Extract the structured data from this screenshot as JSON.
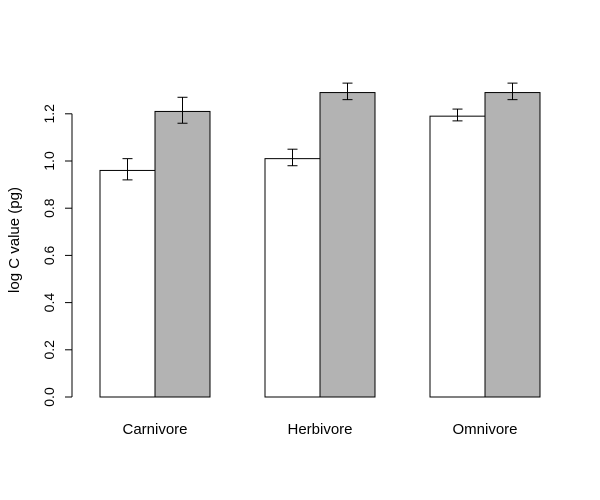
{
  "chart_data": {
    "type": "bar",
    "title": "",
    "xlabel": "",
    "ylabel": "log C value (pg)",
    "ylim": [
      0,
      1.2
    ],
    "yticks": [
      0.0,
      0.2,
      0.4,
      0.6,
      0.8,
      1.0,
      1.2
    ],
    "ytick_labels": [
      "0.0",
      "0.2",
      "0.4",
      "0.6",
      "0.8",
      "1.0",
      "1.2"
    ],
    "categories": [
      "Carnivore",
      "Herbivore",
      "Omnivore"
    ],
    "grid": false,
    "legend": "none",
    "series": [
      {
        "color": "#ffffff",
        "values": [
          0.96,
          1.01,
          1.19
        ],
        "error_low": [
          0.92,
          0.98,
          1.17
        ],
        "error_high": [
          1.01,
          1.05,
          1.22
        ]
      },
      {
        "color": "#b3b3b3",
        "values": [
          1.21,
          1.29,
          1.29
        ],
        "error_low": [
          1.16,
          1.26,
          1.26
        ],
        "error_high": [
          1.27,
          1.33,
          1.33
        ]
      }
    ]
  }
}
